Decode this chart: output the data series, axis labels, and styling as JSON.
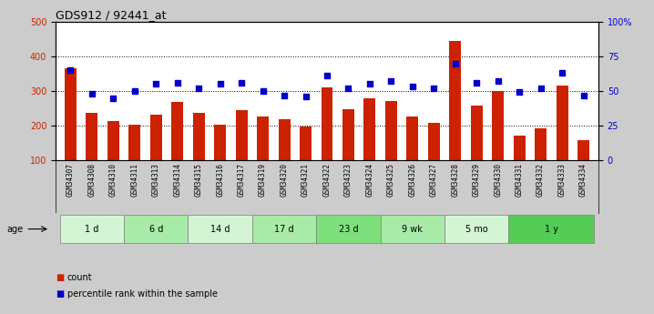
{
  "title": "GDS912 / 92441_at",
  "samples": [
    "GSM34307",
    "GSM34308",
    "GSM34310",
    "GSM34311",
    "GSM34313",
    "GSM34314",
    "GSM34315",
    "GSM34316",
    "GSM34317",
    "GSM34319",
    "GSM34320",
    "GSM34321",
    "GSM34322",
    "GSM34323",
    "GSM34324",
    "GSM34325",
    "GSM34326",
    "GSM34327",
    "GSM34328",
    "GSM34329",
    "GSM34330",
    "GSM34331",
    "GSM34332",
    "GSM34333",
    "GSM34334"
  ],
  "counts": [
    365,
    236,
    213,
    202,
    232,
    268,
    236,
    203,
    245,
    225,
    218,
    197,
    310,
    246,
    278,
    270,
    225,
    207,
    446,
    257,
    300,
    170,
    193,
    315,
    157
  ],
  "percentiles": [
    65,
    48,
    45,
    50,
    55,
    56,
    52,
    55,
    56,
    50,
    47,
    46,
    61,
    52,
    55,
    57,
    53,
    52,
    70,
    56,
    57,
    49,
    52,
    63,
    47
  ],
  "age_groups": [
    {
      "label": "1 d",
      "start": 0,
      "end": 3,
      "color": "#d4f5d4"
    },
    {
      "label": "6 d",
      "start": 3,
      "end": 6,
      "color": "#a8eba8"
    },
    {
      "label": "14 d",
      "start": 6,
      "end": 9,
      "color": "#d4f5d4"
    },
    {
      "label": "17 d",
      "start": 9,
      "end": 12,
      "color": "#a8eba8"
    },
    {
      "label": "23 d",
      "start": 12,
      "end": 15,
      "color": "#7de07d"
    },
    {
      "label": "9 wk",
      "start": 15,
      "end": 18,
      "color": "#a8eba8"
    },
    {
      "label": "5 mo",
      "start": 18,
      "end": 21,
      "color": "#d4f5d4"
    },
    {
      "label": "1 y",
      "start": 21,
      "end": 25,
      "color": "#55cc55"
    }
  ],
  "bar_color": "#cc2200",
  "dot_color": "#0000cc",
  "ylim_left": [
    100,
    500
  ],
  "ylim_right": [
    0,
    100
  ],
  "yticks_left": [
    100,
    200,
    300,
    400,
    500
  ],
  "yticks_right": [
    0,
    25,
    50,
    75,
    100
  ],
  "bg_color": "#cccccc",
  "plot_bg": "#ffffff",
  "xtick_bg": "#cccccc",
  "grid_color": "#000000"
}
